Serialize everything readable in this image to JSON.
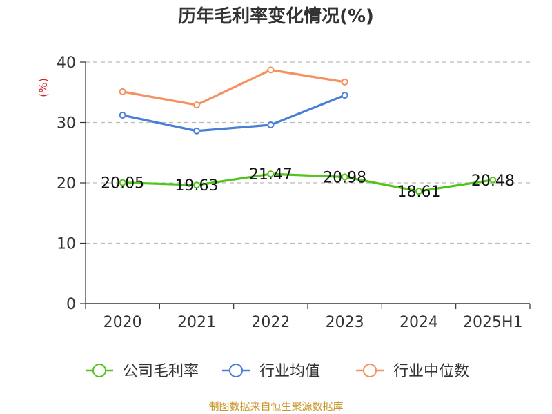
{
  "chart_data": {
    "type": "line",
    "title": "历年毛利率变化情况(%)",
    "ylabel": "(%)",
    "categories": [
      "2020",
      "2021",
      "2022",
      "2023",
      "2024",
      "2025H1"
    ],
    "ylim": [
      0,
      40
    ],
    "yticks": [
      0,
      10,
      20,
      30,
      40
    ],
    "grid": true,
    "legend_position": "bottom",
    "series": [
      {
        "name": "公司毛利率",
        "color": "#52c41a",
        "values": [
          20.05,
          19.63,
          21.47,
          20.98,
          18.61,
          20.48
        ],
        "labels": [
          "20.05",
          "19.63",
          "21.47",
          "20.98",
          "18.61",
          "20.48"
        ]
      },
      {
        "name": "行业均值",
        "color": "#4a7fd6",
        "values": [
          31.2,
          28.6,
          29.6,
          34.5,
          null,
          null
        ]
      },
      {
        "name": "行业中位数",
        "color": "#f59160",
        "values": [
          35.1,
          32.9,
          38.7,
          36.7,
          null,
          null
        ]
      }
    ],
    "source": "制图数据来自恒生聚源数据库",
    "source_color": "#c9962b",
    "ylabel_color": "#e02020"
  }
}
